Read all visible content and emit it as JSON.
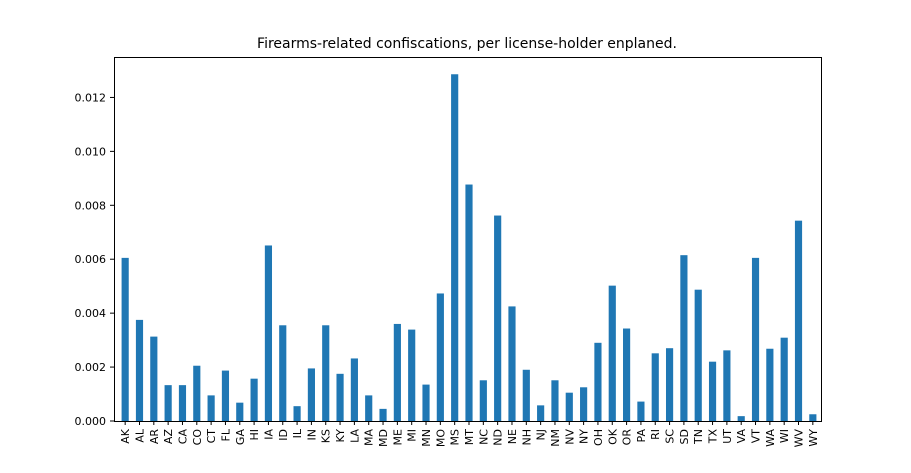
{
  "chart_data": {
    "type": "bar",
    "title": "Firearms-related confiscations, per license-holder enplaned.",
    "xlabel": "",
    "ylabel": "",
    "ylim": [
      0,
      0.0135
    ],
    "yticks": [
      "0.000",
      "0.002",
      "0.004",
      "0.006",
      "0.008",
      "0.010",
      "0.012"
    ],
    "color": "#1f77b4",
    "grid": false,
    "categories": [
      "AK",
      "AL",
      "AR",
      "AZ",
      "CA",
      "CO",
      "CT",
      "FL",
      "GA",
      "HI",
      "IA",
      "ID",
      "IL",
      "IN",
      "KS",
      "KY",
      "LA",
      "MA",
      "MD",
      "ME",
      "MI",
      "MN",
      "MO",
      "MS",
      "MT",
      "NC",
      "ND",
      "NE",
      "NH",
      "NJ",
      "NM",
      "NV",
      "NY",
      "OH",
      "OK",
      "OR",
      "PA",
      "RI",
      "SC",
      "SD",
      "TN",
      "TX",
      "UT",
      "VA",
      "VT",
      "WA",
      "WI",
      "WV",
      "WY"
    ],
    "values": [
      0.00605,
      0.00375,
      0.00313,
      0.00133,
      0.00133,
      0.00205,
      0.00095,
      0.00187,
      0.00068,
      0.00157,
      0.00651,
      0.00355,
      0.00055,
      0.00195,
      0.00355,
      0.00175,
      0.00232,
      0.00095,
      0.00045,
      0.0036,
      0.00339,
      0.00135,
      0.00473,
      0.01286,
      0.00877,
      0.00151,
      0.00762,
      0.00425,
      0.0019,
      0.00058,
      0.00151,
      0.00105,
      0.00125,
      0.0029,
      0.00502,
      0.00343,
      0.00072,
      0.00251,
      0.0027,
      0.00615,
      0.00487,
      0.0022,
      0.00262,
      0.00018,
      0.00605,
      0.00268,
      0.00309,
      0.00743,
      0.00025
    ]
  }
}
